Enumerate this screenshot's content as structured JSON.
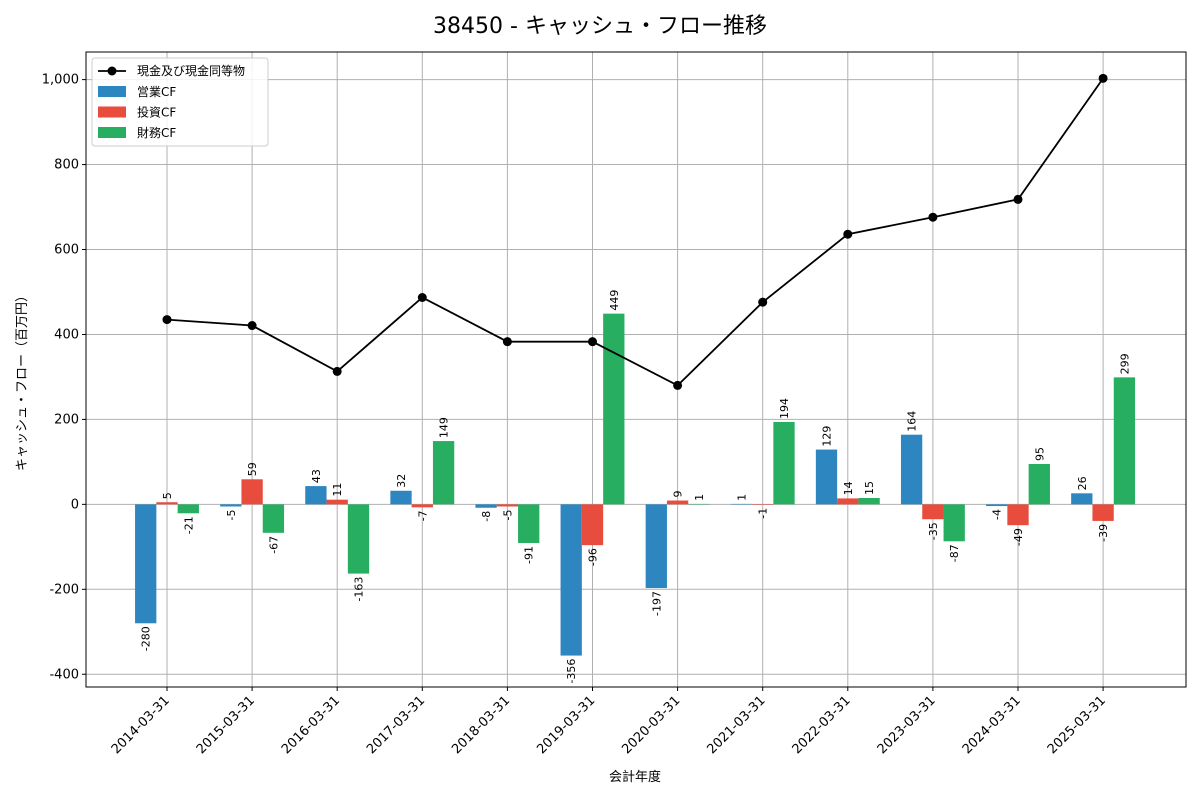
{
  "chart_data": {
    "type": "bar+line",
    "title": "38450 - キャッシュ・フロー推移",
    "xlabel": "会計年度",
    "ylabel": "キャッシュ・フロー（百万円）",
    "ylim": [
      -430,
      1065
    ],
    "yticks": [
      -400,
      -200,
      0,
      200,
      400,
      600,
      800,
      1000
    ],
    "ytick_labels": [
      "-400",
      "-200",
      "0",
      "200",
      "400",
      "600",
      "800",
      "1,000"
    ],
    "grid": true,
    "legend_position": "top-left",
    "categories": [
      "2014-03-31",
      "2015-03-31",
      "2016-03-31",
      "2017-03-31",
      "2018-03-31",
      "2019-03-31",
      "2020-03-31",
      "2021-03-31",
      "2022-03-31",
      "2023-03-31",
      "2024-03-31",
      "2025-03-31"
    ],
    "line": {
      "name": "現金及び現金同等物",
      "color": "#000000",
      "values": [
        435,
        421,
        313,
        487,
        383,
        383,
        280,
        476,
        636,
        676,
        718,
        1003
      ]
    },
    "series": [
      {
        "name": "営業CF",
        "color": "#2e86c1",
        "values": [
          -280,
          -5,
          43,
          32,
          -8,
          -356,
          -197,
          1,
          129,
          164,
          -4,
          26
        ],
        "labels": [
          "-280",
          "-5",
          "43",
          "32",
          "-8",
          "-356",
          "-197",
          "1",
          "129",
          "164",
          "-4",
          "26"
        ]
      },
      {
        "name": "投資CF",
        "color": "#e74c3c",
        "values": [
          5,
          59,
          11,
          -7,
          -5,
          -96,
          9,
          -1,
          14,
          -35,
          -49,
          -39
        ],
        "labels": [
          "5",
          "59",
          "11",
          "-7",
          "-5",
          "-96",
          "9",
          "-1",
          "14",
          "-35",
          "-49",
          "-39"
        ]
      },
      {
        "name": "財務CF",
        "color": "#27ae60",
        "values": [
          -21,
          -67,
          -163,
          149,
          -91,
          449,
          1,
          194,
          15,
          -87,
          95,
          299
        ],
        "labels": [
          "-21",
          "-67",
          "-163",
          "149",
          "-91",
          "449",
          "1",
          "194",
          "15",
          "-87",
          "95",
          "299"
        ]
      }
    ]
  }
}
